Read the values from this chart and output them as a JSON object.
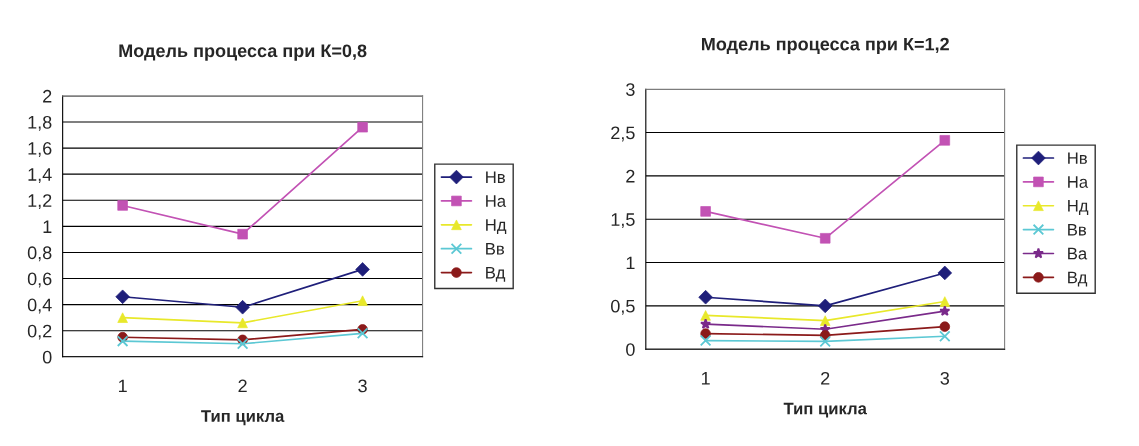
{
  "chart_data": [
    {
      "type": "line",
      "title": "Модель процесса при К=0,8",
      "xlabel": "Тип цикла",
      "categories": [
        "1",
        "2",
        "3"
      ],
      "ylim": [
        0,
        2
      ],
      "yticks": [
        0,
        {
          "value": 0.2,
          "label": "0,2"
        },
        {
          "value": 0.4,
          "label": "0,4"
        },
        {
          "value": 0.6,
          "label": "0,6"
        },
        {
          "value": 0.8,
          "label": "0,8"
        },
        1,
        {
          "value": 1.2,
          "label": "1,2"
        },
        {
          "value": 1.4,
          "label": "1,4"
        },
        {
          "value": 1.6,
          "label": "1,6"
        },
        {
          "value": 1.8,
          "label": "1,8"
        },
        2
      ],
      "grid": "y",
      "legend": "right",
      "series": [
        {
          "name": "Нв",
          "color": "#1f1f7a",
          "marker": "diamond",
          "values": [
            0.46,
            0.38,
            0.67
          ]
        },
        {
          "name": "На",
          "color": "#c252b4",
          "marker": "square",
          "values": [
            1.16,
            0.94,
            1.76
          ]
        },
        {
          "name": "Нд",
          "color": "#e8e82a",
          "marker": "triangle",
          "values": [
            0.3,
            0.26,
            0.43
          ]
        },
        {
          "name": "Вв",
          "color": "#5cc8d4",
          "marker": "cross",
          "values": [
            0.12,
            0.1,
            0.18
          ]
        },
        {
          "name": "Вд",
          "color": "#8b1a1a",
          "marker": "circle",
          "values": [
            0.15,
            0.13,
            0.21
          ]
        }
      ]
    },
    {
      "type": "line",
      "title": "Модель процесса при К=1,2",
      "xlabel": "Тип цикла",
      "categories": [
        "1",
        "2",
        "3"
      ],
      "ylim": [
        0,
        3
      ],
      "yticks": [
        0,
        {
          "value": 0.5,
          "label": "0,5"
        },
        1,
        {
          "value": 1.5,
          "label": "1,5"
        },
        2,
        {
          "value": 2.5,
          "label": "2,5"
        },
        3
      ],
      "grid": "y",
      "legend": "right",
      "series": [
        {
          "name": "Нв",
          "color": "#1f1f7a",
          "marker": "diamond",
          "values": [
            0.6,
            0.5,
            0.88
          ]
        },
        {
          "name": "На",
          "color": "#c252b4",
          "marker": "square",
          "values": [
            1.59,
            1.28,
            2.41
          ]
        },
        {
          "name": "Нд",
          "color": "#e8e82a",
          "marker": "triangle",
          "values": [
            0.39,
            0.33,
            0.55
          ]
        },
        {
          "name": "Вв",
          "color": "#5cc8d4",
          "marker": "cross",
          "values": [
            0.1,
            0.09,
            0.15
          ]
        },
        {
          "name": "Ва",
          "color": "#7a2a8a",
          "marker": "star",
          "values": [
            0.29,
            0.23,
            0.44
          ]
        },
        {
          "name": "Вд",
          "color": "#8b1a1a",
          "marker": "circle",
          "values": [
            0.18,
            0.16,
            0.26
          ]
        }
      ]
    }
  ]
}
